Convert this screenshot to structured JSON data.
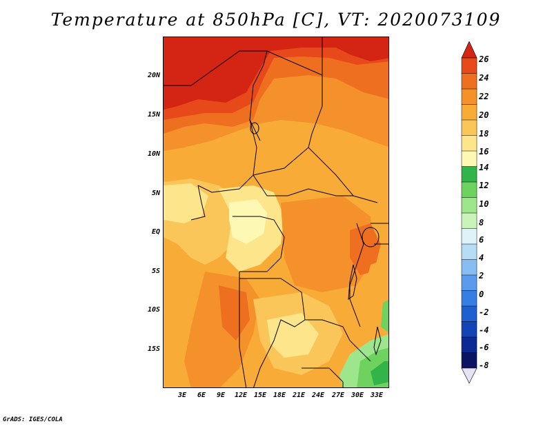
{
  "title": "Temperature at 850hPa [C], VT: 2020073109",
  "credit": "GrADS: IGES/COLA",
  "latitude_labels": [
    "20N",
    "15N",
    "10N",
    "5N",
    "EQ",
    "5S",
    "10S",
    "15S"
  ],
  "longitude_labels": [
    "3E",
    "6E",
    "9E",
    "12E",
    "15E",
    "18E",
    "21E",
    "24E",
    "27E",
    "30E",
    "33E"
  ],
  "colorbar": {
    "labels": [
      "26",
      "24",
      "22",
      "20",
      "18",
      "16",
      "14",
      "12",
      "10",
      "8",
      "6",
      "4",
      "2",
      "0",
      "-2",
      "-4",
      "-6",
      "-8"
    ],
    "colors": [
      "#d42514",
      "#e8491b",
      "#ef6f20",
      "#f5912a",
      "#f9ab38",
      "#fbc659",
      "#fde58c",
      "#fdf8b4",
      "#32b44a",
      "#6dd25e",
      "#9ee68b",
      "#c9f3b8",
      "#dff2f8",
      "#b6dcf6",
      "#87bdf2",
      "#5a9bed",
      "#357ee3",
      "#1d5fd0",
      "#1443b5",
      "#0c2994",
      "#0a1462",
      "#e5e1f7"
    ]
  },
  "map_colors": {
    "c26": "#d42514",
    "c24": "#e8491b",
    "c22": "#ef6f20",
    "c20": "#f5912a",
    "c18": "#f9ab38",
    "c16": "#fbc659",
    "c14": "#fde58c",
    "c12": "#fdf8b4",
    "g1": "#32b44a",
    "g2": "#6dd25e",
    "g3": "#9ee68b"
  }
}
